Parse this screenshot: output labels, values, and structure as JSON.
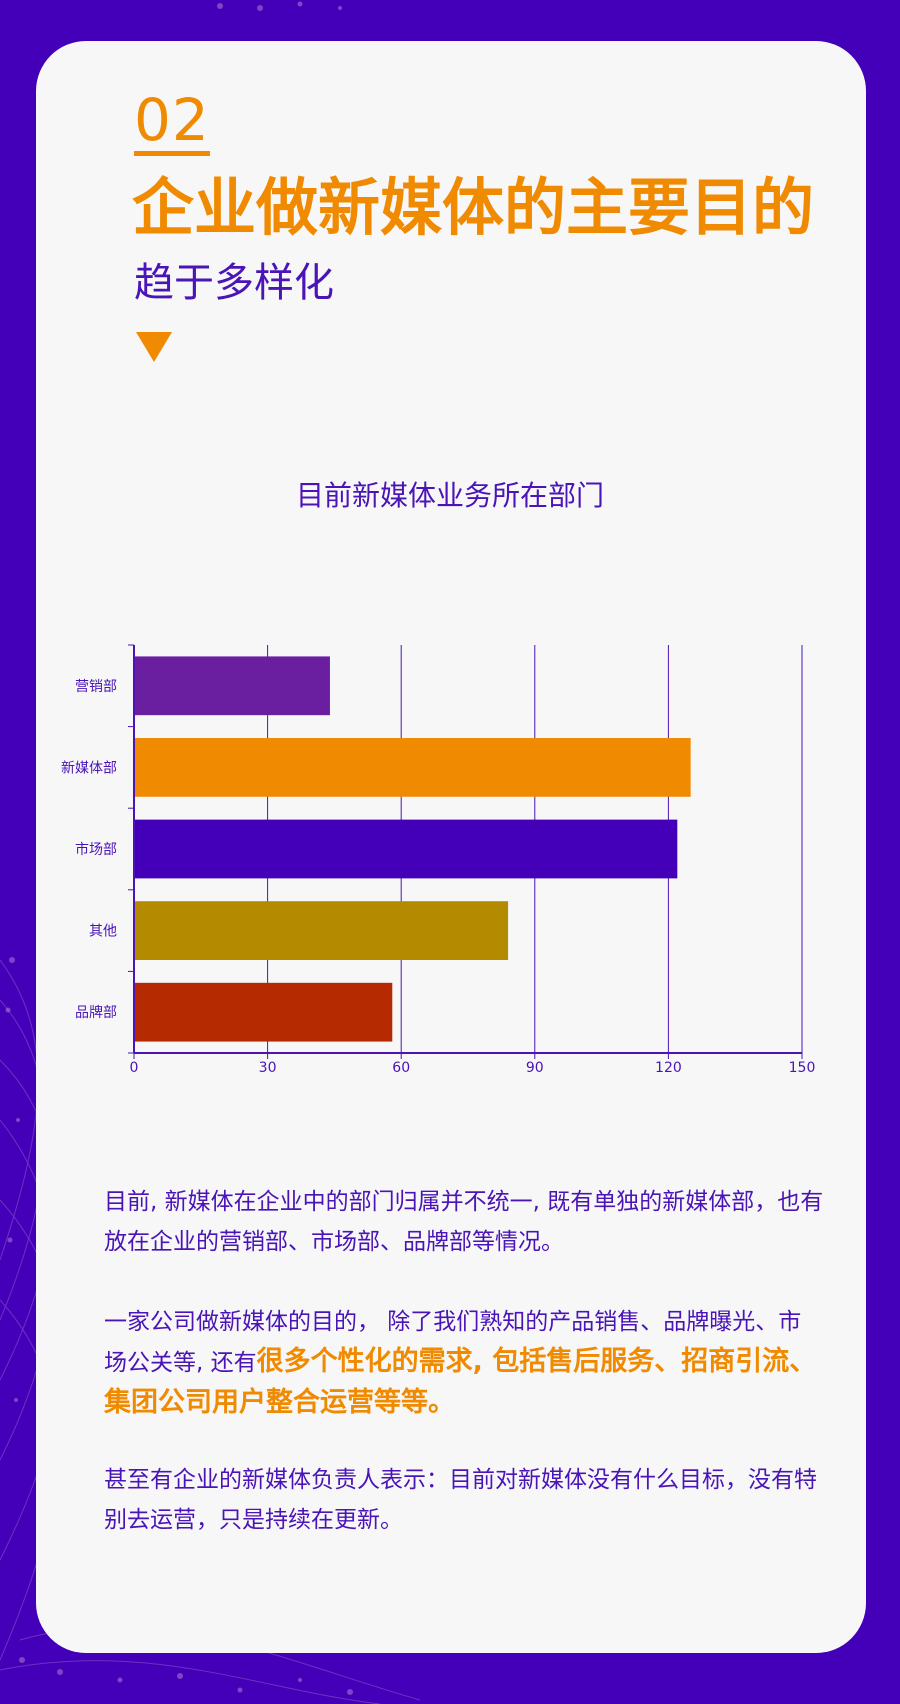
{
  "header": {
    "number": "02",
    "title": "企业做新媒体的主要目的",
    "subtitle": "趋于多样化"
  },
  "colors": {
    "background": "#4400b8",
    "card": "#f7f7f8",
    "accent": "#f08a00",
    "text": "#4a14b6"
  },
  "chart_data": {
    "type": "bar",
    "orientation": "horizontal",
    "title": "目前新媒体业务所在部门",
    "categories": [
      "营销部",
      "新媒体部",
      "市场部",
      "其他",
      "品牌部"
    ],
    "values": [
      44,
      125,
      122,
      84,
      58
    ],
    "bar_colors": [
      "#6a1fa0",
      "#f08a00",
      "#4400b8",
      "#b38a00",
      "#b52a00"
    ],
    "xlim": [
      0,
      150
    ],
    "xticks": [
      "0",
      "30",
      "60",
      "90",
      "120",
      "150"
    ],
    "grid": "vertical",
    "legend": "none"
  },
  "paragraphs": {
    "p1": "目前, 新媒体在企业中的部门归属并不统一, 既有单独的新媒体部，也有放在企业的营销部、市场部、品牌部等情况。",
    "p2_before": "一家公司做新媒体的目的， 除了我们熟知的产品销售、品牌曝光、市场公关等, 还有",
    "p2_highlight": "很多个性化的需求, 包括售后服务、招商引流、集团公司用户整合运营等等。",
    "p3": "甚至有企业的新媒体负责人表示：目前对新媒体没有什么目标，没有特别去运营，只是持续在更新。"
  }
}
